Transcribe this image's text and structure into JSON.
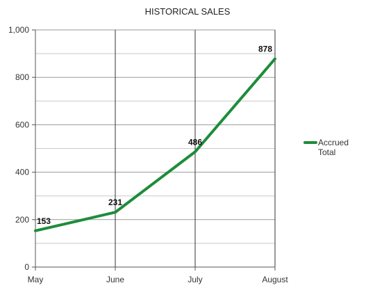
{
  "chart_data": {
    "type": "line",
    "title": "HISTORICAL SALES",
    "xlabel": "",
    "ylabel": "",
    "categories": [
      "May",
      "June",
      "July",
      "August"
    ],
    "series": [
      {
        "name": "Accrued Total",
        "values": [
          153,
          231,
          486,
          878
        ],
        "color": "#1e8c3a"
      }
    ],
    "ylim": [
      0,
      1000
    ],
    "yticks": [
      "0",
      "200",
      "400",
      "600",
      "800",
      "1,000"
    ],
    "grid": true,
    "legend": "right",
    "data_labels": [
      "153",
      "231",
      "486",
      "878"
    ]
  }
}
